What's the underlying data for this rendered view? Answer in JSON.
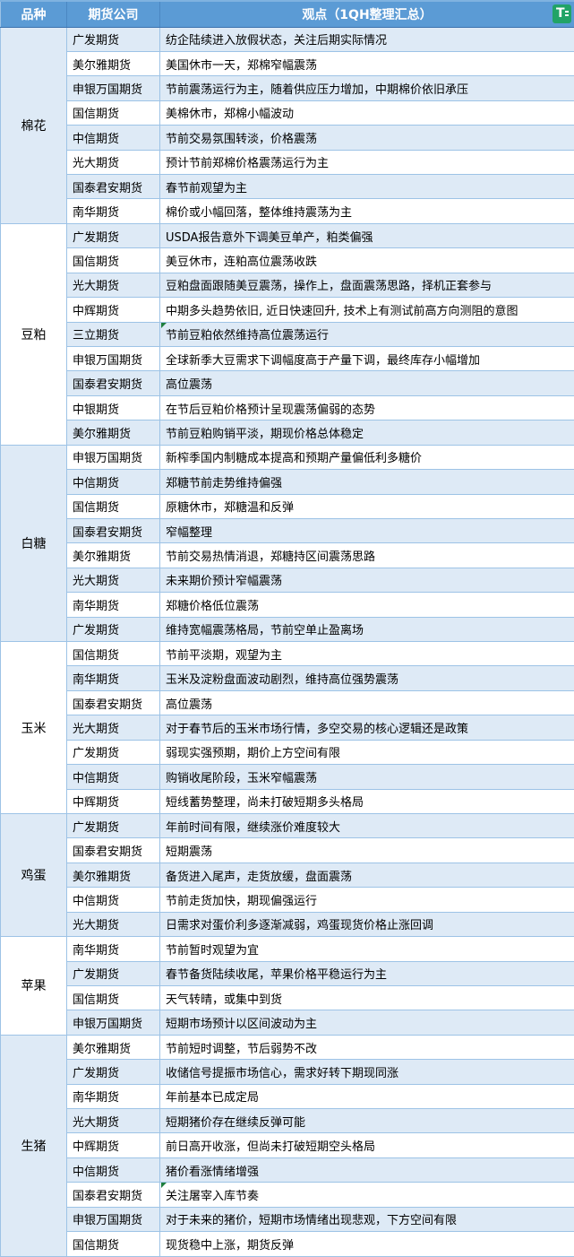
{
  "header": {
    "columns": [
      "品种",
      "期货公司",
      "观点（1QH整理汇总）"
    ],
    "icon": "app-logo-icon",
    "icon_glyph": "T"
  },
  "colors": {
    "header_bg": "#5B9BD5",
    "header_text": "#FFFFFF",
    "band_row_bg": "#DEEAF6",
    "white_row_bg": "#FFFFFF",
    "border": "#9DC3E6",
    "comment_marker_green": "#1E7E3E",
    "logo_green": "#21A366"
  },
  "groups": [
    {
      "variety": "棉花",
      "rows": [
        {
          "company": "广发期货",
          "opinion": "纺企陆续进入放假状态，关注后期实际情况"
        },
        {
          "company": "美尔雅期货",
          "opinion": "美国休市一天，郑棉窄幅震荡"
        },
        {
          "company": "申银万国期货",
          "opinion": "节前震荡运行为主，随着供应压力增加，中期棉价依旧承压"
        },
        {
          "company": "国信期货",
          "opinion": "美棉休市，郑棉小幅波动"
        },
        {
          "company": "中信期货",
          "opinion": "节前交易氛围转淡，价格震荡"
        },
        {
          "company": "光大期货",
          "opinion": "预计节前郑棉价格震荡运行为主"
        },
        {
          "company": "国泰君安期货",
          "opinion": "春节前观望为主"
        },
        {
          "company": "南华期货",
          "opinion": "棉价或小幅回落，整体维持震荡为主"
        }
      ]
    },
    {
      "variety": "豆粕",
      "rows": [
        {
          "company": "广发期货",
          "opinion": "USDA报告意外下调美豆单产，粕类偏强"
        },
        {
          "company": "国信期货",
          "opinion": "美豆休市，连粕高位震荡收跌"
        },
        {
          "company": "光大期货",
          "opinion": "豆粕盘面跟随美豆震荡，操作上，盘面震荡思路，择机正套参与"
        },
        {
          "company": "中辉期货",
          "opinion": "中期多头趋势依旧, 近日快速回升, 技术上有测试前高方向测阻的意图"
        },
        {
          "company": "三立期货",
          "opinion": "节前豆粕依然维持高位震荡运行",
          "has_note": true
        },
        {
          "company": "申银万国期货",
          "opinion": "全球新季大豆需求下调幅度高于产量下调，最终库存小幅增加"
        },
        {
          "company": "国泰君安期货",
          "opinion": "高位震荡"
        },
        {
          "company": "中银期货",
          "opinion": "在节后豆粕价格预计呈现震荡偏弱的态势"
        },
        {
          "company": "美尔雅期货",
          "opinion": "节前豆粕购销平淡，期现价格总体稳定"
        }
      ]
    },
    {
      "variety": "白糖",
      "rows": [
        {
          "company": "申银万国期货",
          "opinion": "新榨季国内制糖成本提高和预期产量偏低利多糖价"
        },
        {
          "company": "中信期货",
          "opinion": "郑糖节前走势维持偏强"
        },
        {
          "company": "国信期货",
          "opinion": "原糖休市，郑糖温和反弹"
        },
        {
          "company": "国泰君安期货",
          "opinion": "窄幅整理"
        },
        {
          "company": "美尔雅期货",
          "opinion": "节前交易热情消退，郑糖持区间震荡思路"
        },
        {
          "company": "光大期货",
          "opinion": "未来期价预计窄幅震荡"
        },
        {
          "company": "南华期货",
          "opinion": "郑糖价格低位震荡"
        },
        {
          "company": "广发期货",
          "opinion": "维持宽幅震荡格局，节前空单止盈离场"
        }
      ]
    },
    {
      "variety": "玉米",
      "rows": [
        {
          "company": "国信期货",
          "opinion": "节前平淡期，观望为主"
        },
        {
          "company": "南华期货",
          "opinion": "玉米及淀粉盘面波动剧烈，维持高位强势震荡"
        },
        {
          "company": "国泰君安期货",
          "opinion": "高位震荡"
        },
        {
          "company": "光大期货",
          "opinion": "对于春节后的玉米市场行情，多空交易的核心逻辑还是政策"
        },
        {
          "company": "广发期货",
          "opinion": "弱现实强预期，期价上方空间有限"
        },
        {
          "company": "中信期货",
          "opinion": "购销收尾阶段，玉米窄幅震荡"
        },
        {
          "company": "中辉期货",
          "opinion": "短线蓄势整理，尚未打破短期多头格局"
        }
      ]
    },
    {
      "variety": "鸡蛋",
      "rows": [
        {
          "company": "广发期货",
          "opinion": "年前时间有限，继续涨价难度较大"
        },
        {
          "company": "国泰君安期货",
          "opinion": "短期震荡"
        },
        {
          "company": "美尔雅期货",
          "opinion": "备货进入尾声，走货放缓，盘面震荡"
        },
        {
          "company": "中信期货",
          "opinion": "节前走货加快，期现偏强运行"
        },
        {
          "company": "光大期货",
          "opinion": "日需求对蛋价利多逐渐减弱，鸡蛋现货价格止涨回调"
        }
      ]
    },
    {
      "variety": "苹果",
      "rows": [
        {
          "company": "南华期货",
          "opinion": "节前暂时观望为宜"
        },
        {
          "company": "广发期货",
          "opinion": "春节备货陆续收尾，苹果价格平稳运行为主"
        },
        {
          "company": "国信期货",
          "opinion": "天气转晴，或集中到货"
        },
        {
          "company": "申银万国期货",
          "opinion": "短期市场预计以区间波动为主"
        }
      ]
    },
    {
      "variety": "生猪",
      "rows": [
        {
          "company": "美尔雅期货",
          "opinion": "节前短时调整，节后弱势不改"
        },
        {
          "company": "广发期货",
          "opinion": "收储信号提振市场信心，需求好转下期现同涨"
        },
        {
          "company": "南华期货",
          "opinion": "年前基本已成定局"
        },
        {
          "company": "光大期货",
          "opinion": "短期猪价存在继续反弹可能"
        },
        {
          "company": "中辉期货",
          "opinion": "前日高开收涨，但尚未打破短期空头格局"
        },
        {
          "company": "中信期货",
          "opinion": "猪价看涨情绪增强"
        },
        {
          "company": "国泰君安期货",
          "opinion": "关注屠宰入库节奏",
          "has_note": true
        },
        {
          "company": "申银万国期货",
          "opinion": "对于未来的猪价，短期市场情绪出现悲观，下方空间有限"
        },
        {
          "company": "国信期货",
          "opinion": "现货稳中上涨，期货反弹"
        }
      ]
    }
  ]
}
